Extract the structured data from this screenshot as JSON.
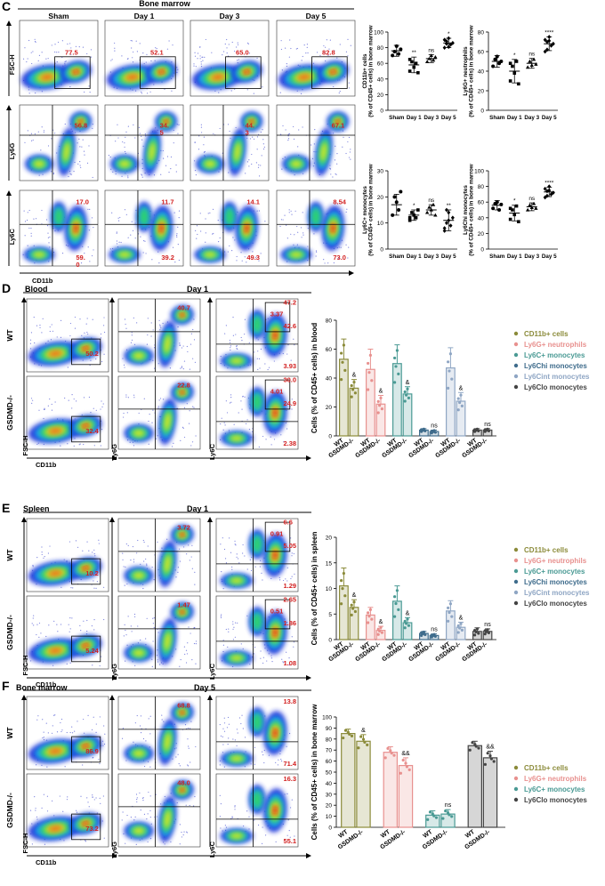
{
  "colors": {
    "cd11b": "#8b8b3a",
    "ly6g": "#e8918f",
    "ly6c": "#4a9a94",
    "ly6chi": "#3f6c8c",
    "ly6cint": "#8fa6c4",
    "ly6clo": "#444444",
    "gate_value": "#d21f1f"
  },
  "icons": [
    "flow-density-plot",
    "gate-rectangle",
    "quadrant-gate",
    "axis-arrow"
  ],
  "panel_c": {
    "letter": "C",
    "header": "Bone marrow",
    "cols": [
      "Sham",
      "Day 1",
      "Day 3",
      "Day 5"
    ],
    "row_labels": [
      "FSC-H",
      "Ly6G",
      "Ly6C"
    ],
    "x_label": "CD11b",
    "gates": [
      [
        "77.5",
        "52.1",
        "65.0",
        "82.8"
      ],
      [
        "56.8",
        "34.\n5",
        "44.\n3",
        "67.1"
      ],
      [
        [
          "17.0",
          "59.\n0"
        ],
        [
          "11.7",
          "39.2"
        ],
        [
          "14.1",
          "49.3"
        ],
        [
          "8.54",
          "73.0"
        ]
      ]
    ]
  },
  "panel_d": {
    "letter": "D",
    "tissue": "Blood",
    "day": "Day 1",
    "rows": [
      "WT",
      "GSDMD-/-"
    ],
    "axis_labels": {
      "fsc": "FSC-H",
      "cd11b": "CD11b",
      "ly6g": "Ly6G",
      "ly6c": "Ly6C"
    },
    "gates": {
      "WT": {
        "cd11b": "50.2",
        "ly6g": "40.7",
        "ly6c": [
          "47.2",
          "3.37",
          "42.6",
          "3.93"
        ]
      },
      "GSDMD-/-": {
        "cd11b": "32.4",
        "ly6g": "22.8",
        "ly6c": [
          "30.0",
          "4.01",
          "24.9",
          "2.38"
        ]
      }
    }
  },
  "panel_e": {
    "letter": "E",
    "tissue": "Spleen",
    "day": "Day 1",
    "rows": [
      "WT",
      "GSDMD-/-"
    ],
    "axis_labels": {
      "fsc": "FSC-H",
      "cd11b": "CD11b",
      "ly6g": "Ly6G",
      "ly6c": "Ly6C"
    },
    "gates": {
      "WT": {
        "cd11b": "10.2",
        "ly6g": "3.72",
        "ly6c": [
          "6.6",
          "0.91",
          "5.05",
          "1.29"
        ]
      },
      "GSDMD-/-": {
        "cd11b": "5.24",
        "ly6g": "1.47",
        "ly6c": [
          "2.65",
          "0.51",
          "1.86",
          "1.08"
        ]
      }
    }
  },
  "panel_f": {
    "letter": "F",
    "tissue": "Bone marrow",
    "day": "Day 5",
    "rows": [
      "WT",
      "GSDMD-/-"
    ],
    "axis_labels": {
      "fsc": "FSC-H",
      "cd11b": "CD11b",
      "ly6g": "Ly6G",
      "ly6c": "Ly6C"
    },
    "gates": {
      "WT": {
        "cd11b": "86.9",
        "ly6g": "68.8",
        "ly6c": [
          "13.8",
          "71.4"
        ]
      },
      "GSDMD-/-": {
        "cd11b": "73.2",
        "ly6g": "48.0",
        "ly6c": [
          "16.3",
          "55.1"
        ]
      }
    }
  },
  "chart_data": [
    {
      "type": "scatter",
      "panel": "C",
      "ylabel": "CD11b+ cells\n(% of CD45+ cells) in bone marrow",
      "categories": [
        "Sham",
        "Day 1",
        "Day 3",
        "Day 5"
      ],
      "ylim": [
        0,
        100
      ],
      "yticks": [
        "0",
        "20",
        "40",
        "60",
        "80",
        "100"
      ],
      "means": [
        76,
        58,
        66,
        86
      ],
      "sd": [
        7,
        10,
        5,
        6
      ],
      "points": [
        [
          70,
          75,
          82,
          72,
          78
        ],
        [
          50,
          62,
          55,
          60,
          48,
          65
        ],
        [
          62,
          66,
          70,
          64,
          68
        ],
        [
          80,
          88,
          92,
          84,
          86,
          90,
          85,
          81
        ]
      ],
      "sig": [
        "",
        "**",
        "ns",
        "*"
      ]
    },
    {
      "type": "scatter",
      "panel": "C",
      "ylabel": "Ly6G+ neutrophils\n(% of CD45+ cells) in bone marrow",
      "categories": [
        "Sham",
        "Day 1",
        "Day 3",
        "Day 5"
      ],
      "ylim": [
        0,
        80
      ],
      "yticks": [
        "0",
        "20",
        "40",
        "60",
        "80"
      ],
      "means": [
        50,
        40,
        48,
        68
      ],
      "sd": [
        6,
        12,
        5,
        7
      ],
      "points": [
        [
          45,
          52,
          55,
          48,
          50
        ],
        [
          30,
          45,
          38,
          50,
          27,
          48
        ],
        [
          44,
          50,
          46,
          52,
          47
        ],
        [
          60,
          70,
          75,
          66,
          68,
          72,
          62,
          71
        ]
      ],
      "sig": [
        "",
        "*",
        "ns",
        "****"
      ]
    },
    {
      "type": "scatter",
      "panel": "C",
      "ylabel": "Ly6C+ monocytes\n(% of CD45+ cells) in bone marrow",
      "categories": [
        "Sham",
        "Day 1",
        "Day 3",
        "Day 5"
      ],
      "ylim": [
        0,
        30
      ],
      "yticks": [
        "0",
        "10",
        "20",
        "30"
      ],
      "means": [
        17,
        13,
        15,
        11
      ],
      "sd": [
        4,
        2,
        2,
        4
      ],
      "points": [
        [
          13,
          20,
          18,
          15,
          22
        ],
        [
          11,
          14,
          13,
          12,
          15,
          12
        ],
        [
          14,
          16,
          15,
          17,
          13
        ],
        [
          7,
          10,
          14,
          9,
          12,
          8,
          15,
          11
        ]
      ],
      "sig": [
        "",
        "*",
        "ns",
        "**"
      ]
    },
    {
      "type": "scatter",
      "panel": "C",
      "ylabel": "Ly6Chi monocytes\n(% of CD45+ cells) in bone marrow",
      "categories": [
        "Sham",
        "Day 1",
        "Day 3",
        "Day 5"
      ],
      "ylim": [
        0,
        100
      ],
      "yticks": [
        "0",
        "20",
        "40",
        "60",
        "80",
        "100"
      ],
      "means": [
        56,
        46,
        54,
        73
      ],
      "sd": [
        6,
        10,
        5,
        6
      ],
      "points": [
        [
          52,
          58,
          60,
          50,
          57
        ],
        [
          38,
          50,
          44,
          55,
          35,
          52
        ],
        [
          50,
          56,
          53,
          58,
          52
        ],
        [
          66,
          74,
          80,
          70,
          72,
          77,
          68,
          75
        ]
      ],
      "sig": [
        "",
        "*",
        "ns",
        "****"
      ]
    },
    {
      "type": "bar",
      "panel": "D",
      "ylabel": "Cells (% of CD45+ cells) in blood",
      "ylim": [
        0,
        80
      ],
      "yticks": [
        "0",
        "20",
        "40",
        "60",
        "80"
      ],
      "groups": [
        "WT",
        "GSDMD-/-"
      ],
      "series": [
        {
          "name": "CD11b+ cells",
          "values": [
            53,
            33
          ],
          "sd": [
            14,
            6
          ],
          "sig": "&"
        },
        {
          "name": "Ly6G+ neutrophils",
          "values": [
            46,
            22
          ],
          "sd": [
            14,
            6
          ],
          "sig": "&"
        },
        {
          "name": "Ly6C+ monocytes",
          "values": [
            50,
            29
          ],
          "sd": [
            13,
            5
          ],
          "sig": "&"
        },
        {
          "name": "Ly6Chi monocytes",
          "values": [
            4,
            3
          ],
          "sd": [
            1,
            1
          ],
          "sig": "ns"
        },
        {
          "name": "Ly6Cint monocytes",
          "values": [
            47,
            24
          ],
          "sd": [
            14,
            6
          ],
          "sig": "&"
        },
        {
          "name": "Ly6Clo monocytes",
          "values": [
            4,
            4
          ],
          "sd": [
            1,
            1
          ],
          "sig": "ns"
        }
      ]
    },
    {
      "type": "bar",
      "panel": "E",
      "ylabel": "Cells (% of CD45+ cells) in spleen",
      "ylim": [
        0,
        20
      ],
      "yticks": [
        "0",
        "5",
        "10",
        "15",
        "20"
      ],
      "groups": [
        "WT",
        "GSDMD-/-"
      ],
      "series": [
        {
          "name": "CD11b+ cells",
          "values": [
            10.5,
            6.3
          ],
          "sd": [
            3.5,
            1.5
          ],
          "sig": "&"
        },
        {
          "name": "Ly6G+ neutrophils",
          "values": [
            4.8,
            1.8
          ],
          "sd": [
            1.5,
            0.8
          ],
          "sig": "&"
        },
        {
          "name": "Ly6C+ monocytes",
          "values": [
            7.5,
            3.3
          ],
          "sd": [
            3,
            1
          ],
          "sig": "&"
        },
        {
          "name": "Ly6Chi monocytes",
          "values": [
            1.2,
            0.8
          ],
          "sd": [
            0.4,
            0.3
          ],
          "sig": "ns"
        },
        {
          "name": "Ly6Cint monocytes",
          "values": [
            5.6,
            2.4
          ],
          "sd": [
            2,
            1
          ],
          "sig": "&"
        },
        {
          "name": "Ly6Clo monocytes",
          "values": [
            1.6,
            1.6
          ],
          "sd": [
            0.7,
            0.5
          ],
          "sig": "ns"
        }
      ]
    },
    {
      "type": "bar",
      "panel": "F",
      "ylabel": "Cells (% of CD45+ cells) in bone marrow",
      "ylim": [
        0,
        100
      ],
      "yticks": [
        "0",
        "10",
        "20",
        "30",
        "40",
        "50",
        "60",
        "70",
        "80",
        "90",
        "100"
      ],
      "groups": [
        "WT",
        "GSDMD-/-"
      ],
      "series": [
        {
          "name": "CD11b+ cells",
          "values": [
            85,
            78
          ],
          "sd": [
            4,
            6
          ],
          "sig": "&"
        },
        {
          "name": "Ly6G+ neutrophils",
          "values": [
            68,
            56
          ],
          "sd": [
            5,
            7
          ],
          "sig": "&&"
        },
        {
          "name": "Ly6C+ monocytes",
          "values": [
            11,
            12
          ],
          "sd": [
            4,
            4
          ],
          "sig": "ns"
        },
        {
          "name": "Ly6Clo monocytes",
          "values": [
            74,
            63
          ],
          "sd": [
            4,
            6
          ],
          "sig": "&&"
        }
      ]
    }
  ]
}
